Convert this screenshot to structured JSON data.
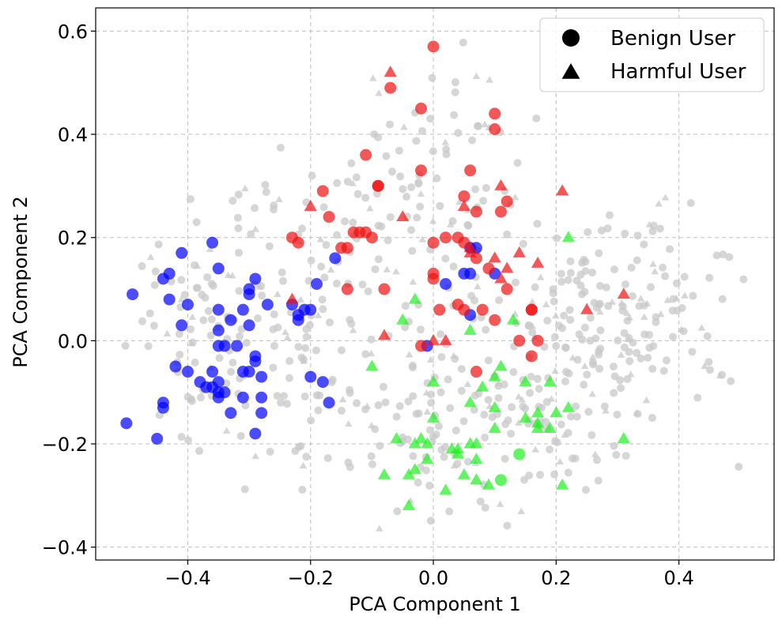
{
  "chart_data": {
    "type": "scatter",
    "xlabel": "PCA Component 1",
    "ylabel": "PCA Component 2",
    "xlim": [
      -0.55,
      0.555
    ],
    "ylim": [
      -0.425,
      0.645
    ],
    "xticks": [
      -0.4,
      -0.2,
      0.0,
      0.2,
      0.4
    ],
    "yticks": [
      -0.4,
      -0.2,
      0.0,
      0.2,
      0.4,
      0.6
    ],
    "xtick_labels": [
      "−0.4",
      "−0.2",
      "0.0",
      "0.2",
      "0.4"
    ],
    "ytick_labels": [
      "−0.4",
      "−0.2",
      "0.0",
      "0.2",
      "0.4",
      "0.6"
    ],
    "grid": true,
    "legend": {
      "placement": "top-right",
      "entries": [
        {
          "label": "Benign User",
          "marker": "circle"
        },
        {
          "label": "Harmful User",
          "marker": "triangle"
        }
      ]
    },
    "colors": {
      "blue": "#0000ff",
      "red": "#ee1111",
      "green": "#22ee22",
      "background": "#c8c8c8"
    },
    "series": [
      {
        "color_key": "blue",
        "marker": "circle",
        "points": [
          [
            -0.36,
            0.19
          ],
          [
            -0.41,
            0.17
          ],
          [
            -0.43,
            0.13
          ],
          [
            -0.44,
            0.12
          ],
          [
            -0.35,
            0.14
          ],
          [
            -0.49,
            0.09
          ],
          [
            -0.43,
            0.08
          ],
          [
            -0.4,
            0.07
          ],
          [
            -0.35,
            0.06
          ],
          [
            -0.41,
            0.03
          ],
          [
            -0.29,
            0.12
          ],
          [
            -0.3,
            0.1
          ],
          [
            -0.3,
            0.09
          ],
          [
            -0.31,
            0.06
          ],
          [
            -0.33,
            0.04
          ],
          [
            -0.27,
            0.07
          ],
          [
            -0.35,
            0.02
          ],
          [
            -0.3,
            0.03
          ],
          [
            -0.35,
            -0.01
          ],
          [
            -0.34,
            -0.01
          ],
          [
            -0.32,
            -0.01
          ],
          [
            -0.29,
            -0.03
          ],
          [
            -0.29,
            -0.04
          ],
          [
            -0.42,
            -0.05
          ],
          [
            -0.4,
            -0.06
          ],
          [
            -0.36,
            -0.06
          ],
          [
            -0.31,
            -0.06
          ],
          [
            -0.3,
            -0.06
          ],
          [
            -0.28,
            -0.07
          ],
          [
            -0.38,
            -0.08
          ],
          [
            -0.37,
            -0.09
          ],
          [
            -0.36,
            -0.09
          ],
          [
            -0.35,
            -0.08
          ],
          [
            -0.35,
            -0.1
          ],
          [
            -0.34,
            -0.1
          ],
          [
            -0.35,
            -0.11
          ],
          [
            -0.31,
            -0.11
          ],
          [
            -0.28,
            -0.11
          ],
          [
            -0.44,
            -0.12
          ],
          [
            -0.44,
            -0.13
          ],
          [
            -0.33,
            -0.14
          ],
          [
            -0.28,
            -0.14
          ],
          [
            -0.5,
            -0.16
          ],
          [
            -0.45,
            -0.19
          ],
          [
            -0.29,
            -0.18
          ],
          [
            -0.23,
            0.07
          ],
          [
            -0.22,
            0.05
          ],
          [
            -0.22,
            0.04
          ],
          [
            -0.2,
            0.06
          ],
          [
            -0.21,
            0.06
          ],
          [
            -0.19,
            0.11
          ],
          [
            -0.2,
            -0.07
          ],
          [
            -0.18,
            -0.08
          ],
          [
            -0.17,
            -0.12
          ],
          [
            -0.16,
            0.16
          ],
          [
            0.02,
            0.11
          ],
          [
            0.05,
            0.13
          ],
          [
            0.06,
            0.13
          ],
          [
            0.06,
            0.18
          ],
          [
            0.07,
            0.18
          ],
          [
            0.06,
            0.05
          ],
          [
            0.1,
            0.13
          ],
          [
            -0.01,
            -0.01
          ]
        ]
      },
      {
        "color_key": "red",
        "marker": "circle",
        "points": [
          [
            0.0,
            0.57
          ],
          [
            -0.07,
            0.49
          ],
          [
            -0.02,
            0.45
          ],
          [
            0.1,
            0.44
          ],
          [
            0.1,
            0.41
          ],
          [
            -0.11,
            0.36
          ],
          [
            -0.02,
            0.33
          ],
          [
            0.06,
            0.33
          ],
          [
            -0.09,
            0.3
          ],
          [
            -0.18,
            0.29
          ],
          [
            -0.09,
            0.3
          ],
          [
            0.05,
            0.28
          ],
          [
            0.12,
            0.27
          ],
          [
            0.11,
            0.25
          ],
          [
            0.07,
            0.25
          ],
          [
            -0.17,
            0.24
          ],
          [
            -0.13,
            0.21
          ],
          [
            -0.12,
            0.21
          ],
          [
            -0.11,
            0.21
          ],
          [
            -0.1,
            0.2
          ],
          [
            -0.22,
            0.19
          ],
          [
            -0.23,
            0.2
          ],
          [
            0.02,
            0.2
          ],
          [
            0.04,
            0.2
          ],
          [
            0.0,
            0.19
          ],
          [
            -0.15,
            0.18
          ],
          [
            -0.14,
            0.18
          ],
          [
            0.05,
            0.19
          ],
          [
            0.07,
            0.16
          ],
          [
            0.0,
            0.13
          ],
          [
            0.0,
            0.12
          ],
          [
            0.09,
            0.14
          ],
          [
            0.12,
            0.1
          ],
          [
            -0.14,
            0.1
          ],
          [
            -0.08,
            0.1
          ],
          [
            0.04,
            0.07
          ],
          [
            0.08,
            0.06
          ],
          [
            0.05,
            0.06
          ],
          [
            0.16,
            0.06
          ],
          [
            0.16,
            0.06
          ],
          [
            0.01,
            0.06
          ],
          [
            0.1,
            0.04
          ],
          [
            0.14,
            0.0
          ],
          [
            0.17,
            0.0
          ],
          [
            -0.02,
            -0.01
          ],
          [
            0.16,
            -0.03
          ],
          [
            0.07,
            -0.06
          ]
        ]
      },
      {
        "color_key": "red",
        "marker": "triangle",
        "points": [
          [
            -0.07,
            0.52
          ],
          [
            0.11,
            0.3
          ],
          [
            0.21,
            0.29
          ],
          [
            -0.2,
            0.26
          ],
          [
            -0.05,
            0.24
          ],
          [
            0.05,
            0.26
          ],
          [
            0.06,
            0.17
          ],
          [
            0.06,
            0.18
          ],
          [
            0.1,
            0.16
          ],
          [
            0.14,
            0.17
          ],
          [
            0.17,
            0.15
          ],
          [
            0.12,
            0.14
          ],
          [
            0.11,
            0.12
          ],
          [
            0.25,
            0.06
          ],
          [
            0.31,
            0.09
          ],
          [
            -0.23,
            0.08
          ],
          [
            -0.08,
            0.01
          ],
          [
            0.0,
            0.0
          ],
          [
            0.02,
            0.0
          ]
        ]
      },
      {
        "color_key": "green",
        "marker": "circle",
        "points": [
          [
            0.14,
            -0.22
          ],
          [
            0.11,
            -0.27
          ]
        ]
      },
      {
        "color_key": "green",
        "marker": "triangle",
        "points": [
          [
            0.22,
            0.2
          ],
          [
            -0.03,
            0.08
          ],
          [
            0.13,
            0.04
          ],
          [
            -0.05,
            0.04
          ],
          [
            0.06,
            0.02
          ],
          [
            -0.1,
            -0.05
          ],
          [
            0.11,
            -0.05
          ],
          [
            0.1,
            -0.07
          ],
          [
            0.15,
            -0.08
          ],
          [
            0.19,
            -0.08
          ],
          [
            0.0,
            -0.08
          ],
          [
            0.08,
            -0.09
          ],
          [
            0.06,
            -0.12
          ],
          [
            0.1,
            -0.13
          ],
          [
            0.22,
            -0.13
          ],
          [
            0.17,
            -0.14
          ],
          [
            0.2,
            -0.14
          ],
          [
            0.0,
            -0.15
          ],
          [
            0.15,
            -0.15
          ],
          [
            0.17,
            -0.16
          ],
          [
            0.17,
            -0.17
          ],
          [
            0.19,
            -0.17
          ],
          [
            0.1,
            -0.17
          ],
          [
            -0.06,
            -0.19
          ],
          [
            -0.02,
            -0.19
          ],
          [
            -0.01,
            -0.2
          ],
          [
            0.06,
            -0.2
          ],
          [
            0.07,
            -0.2
          ],
          [
            -0.03,
            -0.2
          ],
          [
            0.03,
            -0.21
          ],
          [
            0.04,
            -0.21
          ],
          [
            0.04,
            -0.22
          ],
          [
            -0.01,
            -0.23
          ],
          [
            0.07,
            -0.23
          ],
          [
            0.31,
            -0.19
          ],
          [
            -0.08,
            -0.26
          ],
          [
            -0.03,
            -0.25
          ],
          [
            -0.04,
            -0.26
          ],
          [
            0.05,
            -0.26
          ],
          [
            0.07,
            -0.27
          ],
          [
            0.09,
            -0.28
          ],
          [
            0.21,
            -0.28
          ],
          [
            0.02,
            -0.29
          ],
          [
            -0.04,
            -0.32
          ]
        ]
      }
    ]
  }
}
